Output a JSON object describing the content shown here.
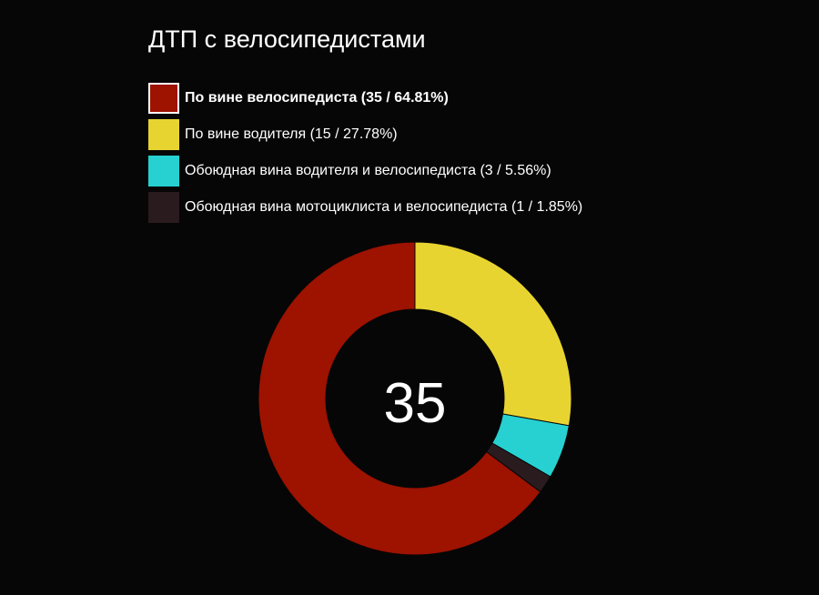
{
  "chart_data": {
    "type": "pie",
    "title": "ДТП с велосипедистами",
    "center_value": "35",
    "selected_index": 0,
    "slices": [
      {
        "label": "По вине велосипедиста",
        "value": 35,
        "percent": "64.81%",
        "color": "#9e1200"
      },
      {
        "label": "По вине водителя",
        "value": 15,
        "percent": "27.78%",
        "color": "#e8d430"
      },
      {
        "label": "Обоюдная вина водителя и велосипедиста",
        "value": 3,
        "percent": "5.56%",
        "color": "#27d1d1"
      },
      {
        "label": "Обоюдная вина мотоциклиста и велосипедиста",
        "value": 1,
        "percent": "1.85%",
        "color": "#2a1b1f"
      }
    ],
    "legend_position": "top-left",
    "background": "#060606"
  }
}
